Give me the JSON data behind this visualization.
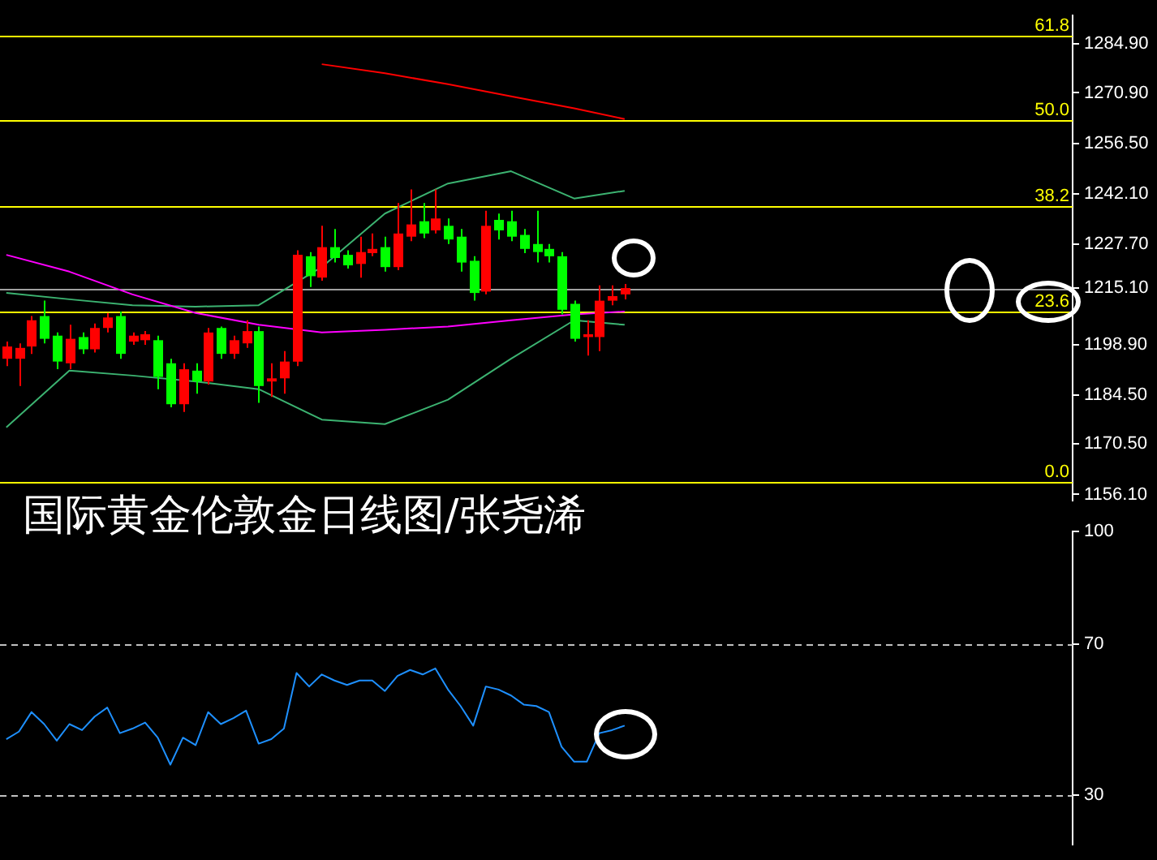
{
  "chart_data": [
    {
      "type": "candlestick",
      "title": "国际黄金伦敦金日线图/张尧浠",
      "categories": [
        null,
        null,
        null,
        null,
        null,
        null,
        null,
        null,
        null,
        null,
        null,
        null,
        null,
        null,
        null,
        null,
        null,
        null,
        null,
        null,
        null,
        null,
        null,
        null,
        null,
        null,
        null,
        null,
        null,
        null,
        null,
        null,
        null,
        null,
        null,
        null,
        null,
        null,
        null,
        null,
        null,
        null,
        null,
        null,
        null,
        null,
        null,
        null,
        null,
        null,
        null,
        null,
        null,
        null,
        null,
        null,
        null,
        null,
        null,
        null,
        null,
        null,
        null,
        null,
        null,
        null,
        null,
        null,
        null,
        null,
        null,
        null,
        null,
        null,
        null,
        null,
        null,
        null,
        null,
        null,
        null,
        null,
        null,
        null,
        null
      ],
      "ohlc": [
        [
          1194.9,
          1199.8,
          1192.8,
          1198.4
        ],
        [
          1194.9,
          1199.3,
          1187.1,
          1198.0
        ],
        [
          1198.4,
          1207.1,
          1196.3,
          1205.9
        ],
        [
          1207.1,
          1211.5,
          1199.3,
          1200.6
        ],
        [
          1201.5,
          1202.4,
          1191.9,
          1194.1
        ],
        [
          1193.6,
          1204.6,
          1191.9,
          1200.6
        ],
        [
          1201.1,
          1202.4,
          1196.3,
          1197.6
        ],
        [
          1197.6,
          1205.0,
          1196.7,
          1203.7
        ],
        [
          1203.7,
          1208.0,
          1202.4,
          1206.7
        ],
        [
          1207.1,
          1208.4,
          1194.9,
          1196.3
        ],
        [
          1199.8,
          1202.4,
          1198.9,
          1201.5
        ],
        [
          1200.2,
          1202.8,
          1198.9,
          1201.9
        ],
        [
          1200.2,
          1201.5,
          1186.2,
          1189.7
        ],
        [
          1193.6,
          1194.9,
          1181.0,
          1181.9
        ],
        [
          1181.9,
          1193.6,
          1179.7,
          1191.9
        ],
        [
          1191.5,
          1193.6,
          1184.9,
          1188.4
        ],
        [
          1188.4,
          1203.7,
          1187.5,
          1202.4
        ],
        [
          1203.7,
          1204.1,
          1194.9,
          1196.3
        ],
        [
          1196.3,
          1201.5,
          1194.9,
          1200.2
        ],
        [
          1199.3,
          1205.9,
          1198.0,
          1202.8
        ],
        [
          1202.8,
          1204.1,
          1182.3,
          1187.1
        ],
        [
          1188.4,
          1193.6,
          1184.0,
          1189.3
        ],
        [
          1189.3,
          1197.1,
          1184.9,
          1194.1
        ],
        [
          1194.1,
          1225.9,
          1192.8,
          1224.6
        ],
        [
          1224.2,
          1225.4,
          1215.4,
          1218.5
        ],
        [
          1218.1,
          1232.9,
          1217.2,
          1226.8
        ],
        [
          1226.8,
          1232.0,
          1222.4,
          1223.7
        ],
        [
          1224.6,
          1225.9,
          1220.7,
          1221.6
        ],
        [
          1222.0,
          1229.8,
          1218.1,
          1225.4
        ],
        [
          1225.1,
          1230.7,
          1224.2,
          1226.3
        ],
        [
          1226.8,
          1229.8,
          1219.8,
          1221.1
        ],
        [
          1221.1,
          1239.4,
          1220.2,
          1230.7
        ],
        [
          1229.8,
          1243.3,
          1228.5,
          1233.3
        ],
        [
          1234.2,
          1239.4,
          1229.4,
          1230.7
        ],
        [
          1231.6,
          1243.3,
          1230.7,
          1235.0
        ],
        [
          1232.9,
          1235.0,
          1227.7,
          1229.0
        ],
        [
          1229.8,
          1232.0,
          1219.8,
          1222.4
        ],
        [
          1222.9,
          1224.2,
          1211.5,
          1213.7
        ],
        [
          1214.1,
          1237.2,
          1213.3,
          1232.9
        ],
        [
          1234.6,
          1236.4,
          1229.0,
          1231.6
        ],
        [
          1234.2,
          1237.2,
          1228.5,
          1229.8
        ],
        [
          1230.3,
          1232.0,
          1225.1,
          1226.3
        ],
        [
          1227.7,
          1237.2,
          1222.4,
          1225.4
        ],
        [
          1226.3,
          1227.7,
          1222.4,
          1224.2
        ],
        [
          1224.2,
          1225.4,
          1207.6,
          1208.9
        ],
        [
          1210.6,
          1211.5,
          1199.8,
          1200.6
        ],
        [
          1201.1,
          1205.9,
          1195.8,
          1201.9
        ],
        [
          1201.1,
          1215.9,
          1197.1,
          1211.5
        ],
        [
          1211.5,
          1215.9,
          1210.2,
          1212.8
        ],
        [
          1213.3,
          1216.3,
          1211.9,
          1215.1
        ],
        null,
        null,
        null,
        null,
        null,
        null,
        null,
        null,
        null,
        null,
        null,
        null,
        null,
        null,
        null,
        null,
        null,
        null,
        null,
        null,
        null,
        null,
        null,
        null,
        null,
        null,
        null,
        null,
        null,
        null,
        null,
        null,
        null,
        null,
        null
      ],
      "colors": [
        "#ff0000",
        "#ff0000",
        "#ff0000",
        "#00ff00",
        "#00ff00",
        "#ff0000",
        "#00ff00",
        "#ff0000",
        "#ff0000",
        "#00ff00",
        "#ff0000",
        "#ff0000",
        "#00ff00",
        "#00ff00",
        "#ff0000",
        "#00ff00",
        "#ff0000",
        "#00ff00",
        "#ff0000",
        "#ff0000",
        "#00ff00",
        "#ff0000",
        "#ff0000",
        "#ff0000",
        "#00ff00",
        "#ff0000",
        "#00ff00",
        "#00ff00",
        "#ff0000",
        "#ff0000",
        "#00ff00",
        "#ff0000",
        "#ff0000",
        "#00ff00",
        "#ff0000",
        "#00ff00",
        "#00ff00",
        "#00ff00",
        "#ff0000",
        "#00ff00",
        "#00ff00",
        "#00ff00",
        "#00ff00",
        "#00ff00",
        "#00ff00",
        "#00ff00",
        "#ff0000",
        "#ff0000",
        "#ff0000",
        "#ff0000",
        null,
        null,
        null,
        null,
        null,
        null,
        null,
        null,
        null,
        null,
        null,
        null,
        null,
        null,
        null,
        null,
        null,
        null,
        null,
        null,
        null,
        null,
        null,
        null,
        null,
        null,
        null,
        null,
        null,
        null,
        null,
        null,
        null,
        null,
        null
      ],
      "series": [
        {
          "type": "line",
          "color": "#ff0000",
          "values": [
            null,
            null,
            null,
            null,
            null,
            null,
            null,
            null,
            null,
            null,
            null,
            null,
            null,
            null,
            null,
            null,
            null,
            null,
            null,
            null,
            null,
            null,
            null,
            null,
            null,
            1279.1,
            null,
            null,
            null,
            null,
            1276.5,
            null,
            null,
            null,
            null,
            1273.4,
            null,
            null,
            null,
            null,
            1269.9,
            null,
            null,
            null,
            null,
            1266.5,
            null,
            null,
            null,
            1263.4,
            null,
            null,
            null,
            null,
            null,
            null,
            null,
            null,
            null,
            null,
            null,
            null,
            null,
            null,
            null,
            null,
            null,
            null,
            null,
            null,
            null,
            null,
            null,
            null,
            null,
            null,
            null,
            null,
            null,
            null,
            null,
            null,
            null,
            null,
            null
          ]
        },
        {
          "type": "line",
          "color": "#ff00ff",
          "values": [
            1224.6,
            null,
            null,
            null,
            null,
            1219.8,
            null,
            null,
            null,
            null,
            1213.3,
            null,
            null,
            null,
            null,
            1208.0,
            null,
            null,
            null,
            null,
            1204.6,
            null,
            null,
            null,
            null,
            1202.4,
            null,
            null,
            null,
            null,
            1203.2,
            null,
            null,
            null,
            null,
            1204.1,
            null,
            null,
            null,
            null,
            1205.9,
            null,
            null,
            null,
            null,
            1207.6,
            null,
            null,
            null,
            1208.4,
            null,
            null,
            null,
            null,
            null,
            null,
            null,
            null,
            null,
            null,
            null,
            null,
            null,
            null,
            null,
            null,
            null,
            null,
            null,
            null,
            null,
            null,
            null,
            null,
            null,
            null,
            null,
            null,
            null,
            null,
            null,
            null,
            null,
            null,
            null
          ]
        },
        {
          "type": "line",
          "color": "#3cb371",
          "values": [
            1213.7,
            null,
            null,
            null,
            null,
            1211.9,
            null,
            null,
            null,
            null,
            1210.2,
            null,
            null,
            null,
            null,
            1209.8,
            null,
            null,
            null,
            null,
            1210.2,
            null,
            null,
            null,
            null,
            1221.1,
            null,
            null,
            null,
            null,
            1236.4,
            null,
            null,
            null,
            null,
            1245.0,
            null,
            null,
            null,
            null,
            1248.5,
            null,
            null,
            null,
            null,
            1240.7,
            null,
            null,
            null,
            1242.9,
            null,
            null,
            null,
            null,
            null,
            null,
            null,
            null,
            null,
            null,
            null,
            null,
            null,
            null,
            null,
            null,
            null,
            null,
            null,
            null,
            null,
            null,
            null,
            null,
            null,
            null,
            null,
            null,
            null,
            null,
            null,
            null,
            null,
            null,
            null
          ]
        },
        {
          "type": "line",
          "color": "#3cb371",
          "values": [
            1175.3,
            null,
            null,
            null,
            null,
            1191.5,
            null,
            null,
            null,
            null,
            1190.1,
            null,
            null,
            null,
            null,
            1188.4,
            null,
            null,
            null,
            null,
            1186.2,
            null,
            null,
            null,
            null,
            1177.5,
            null,
            null,
            null,
            null,
            1176.2,
            null,
            null,
            null,
            null,
            1183.2,
            null,
            null,
            null,
            null,
            1194.9,
            null,
            null,
            null,
            null,
            1205.9,
            null,
            null,
            null,
            1204.6,
            null,
            null,
            null,
            null,
            null,
            null,
            null,
            null,
            null,
            null,
            null,
            null,
            null,
            null,
            null,
            null,
            null,
            null,
            null,
            null,
            null,
            null,
            null,
            null,
            null,
            null,
            null,
            null,
            null,
            null,
            null,
            null,
            null,
            null,
            null
          ]
        }
      ],
      "ylim": [
        1154.4,
        1293.0
      ],
      "yticks": [
        {
          "value": 1284.9,
          "label": "1284.90"
        },
        {
          "value": 1270.9,
          "label": "1270.90"
        },
        {
          "value": 1256.5,
          "label": "1256.50"
        },
        {
          "value": 1242.1,
          "label": "1242.10"
        },
        {
          "value": 1227.7,
          "label": "1227.70"
        },
        {
          "value": 1215.1,
          "label": "1215.10"
        },
        {
          "value": 1198.9,
          "label": "1198.90"
        },
        {
          "value": 1184.5,
          "label": "1184.50"
        },
        {
          "value": 1170.5,
          "label": "1170.50"
        },
        {
          "value": 1156.1,
          "label": "1156.10"
        }
      ],
      "annotations": [
        {
          "text": "61.8",
          "y": 1287.4
        },
        {
          "text": "50.0",
          "y": 1263.0
        },
        {
          "text": "38.2",
          "y": 1238.5
        },
        {
          "text": "23.6",
          "y": 1208.5
        },
        {
          "text": "0.0",
          "y": 1159.6
        }
      ],
      "ref_lines": [
        {
          "axis": "y",
          "value": 1287.4,
          "color": "#ffff00"
        },
        {
          "axis": "y",
          "value": 1263.0,
          "color": "#ffff00"
        },
        {
          "axis": "y",
          "value": 1238.5,
          "color": "#ffff00"
        },
        {
          "axis": "y",
          "value": 1208.5,
          "color": "#ffff00"
        },
        {
          "axis": "y",
          "value": 1159.6,
          "color": "#ffff00"
        },
        {
          "axis": "y",
          "value": 1215.1,
          "color": "#a0a0a0"
        }
      ],
      "tick_labels": "y"
    },
    {
      "type": "line",
      "categories": [
        null,
        null,
        null,
        null,
        null,
        null,
        null,
        null,
        null,
        null,
        null,
        null,
        null,
        null,
        null,
        null,
        null,
        null,
        null,
        null,
        null,
        null,
        null,
        null,
        null,
        null,
        null,
        null,
        null,
        null,
        null,
        null,
        null,
        null,
        null,
        null,
        null,
        null,
        null,
        null,
        null,
        null,
        null,
        null,
        null,
        null,
        null,
        null,
        null,
        null,
        null,
        null,
        null,
        null,
        null,
        null,
        null,
        null,
        null,
        null,
        null,
        null,
        null,
        null,
        null,
        null,
        null,
        null,
        null,
        null,
        null,
        null,
        null,
        null,
        null,
        null,
        null,
        null,
        null,
        null,
        null,
        null,
        null,
        null,
        null
      ],
      "series": [
        {
          "color": "#1e90ff",
          "values": [
            44.8,
            46.8,
            52.0,
            48.8,
            44.4,
            48.8,
            47.2,
            50.8,
            53.2,
            46.4,
            47.6,
            49.2,
            45.2,
            38.0,
            45.2,
            43.2,
            52.0,
            48.8,
            50.4,
            52.4,
            43.6,
            44.8,
            47.6,
            62.4,
            58.8,
            62.0,
            60.4,
            59.2,
            60.4,
            60.4,
            57.6,
            61.6,
            63.2,
            62.0,
            63.6,
            58.0,
            53.6,
            48.4,
            58.8,
            58.0,
            56.4,
            54.0,
            53.6,
            52.0,
            42.8,
            38.8,
            38.8,
            46.4,
            47.2,
            48.4,
            null,
            null,
            null,
            null,
            null,
            null,
            null,
            null,
            null,
            null,
            null,
            null,
            null,
            null,
            null,
            null,
            null,
            null,
            null,
            null,
            null,
            null,
            null,
            null,
            null,
            null,
            null,
            null,
            null,
            null,
            null,
            null,
            null,
            null,
            null
          ]
        }
      ],
      "ylim": [
        16.8,
        100
      ],
      "yticks": [
        100,
        70,
        30
      ],
      "ref_lines": [
        {
          "axis": "y",
          "value": 70,
          "color": "#c0c0c0",
          "line_style": "dashed"
        },
        {
          "axis": "y",
          "value": 30,
          "color": "#c0c0c0",
          "line_style": "dashed"
        }
      ],
      "tick_labels": "y"
    }
  ]
}
